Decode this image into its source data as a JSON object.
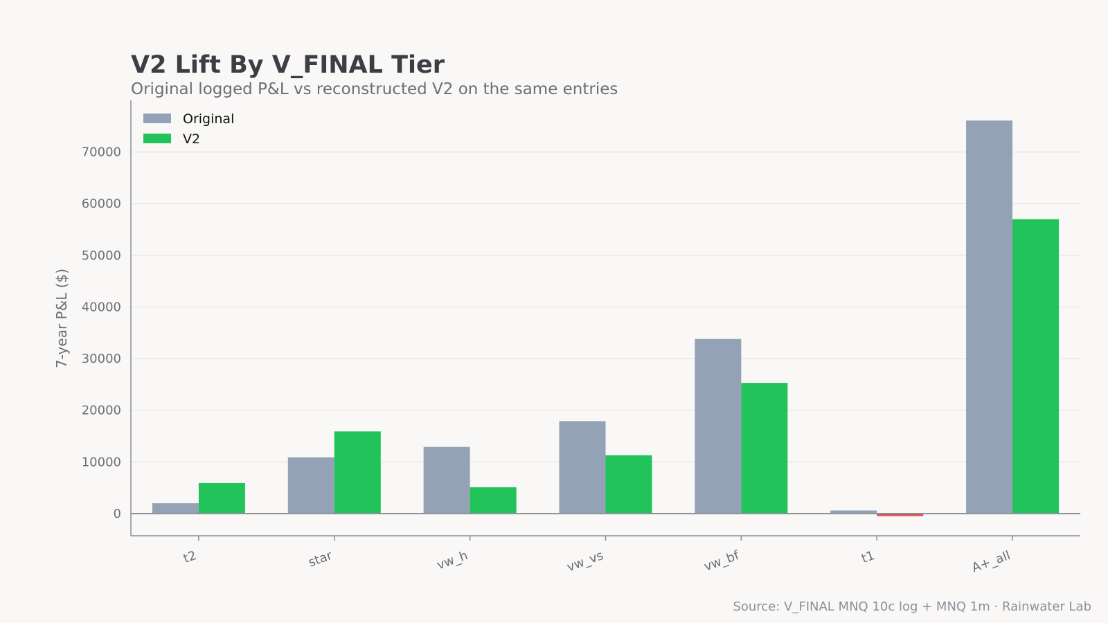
{
  "chart_data": {
    "type": "bar",
    "title": "V2 Lift By V_FINAL Tier",
    "subtitle": "Original logged P&L vs reconstructed V2 on the same entries",
    "xlabel": "",
    "ylabel": "7-year P&L ($)",
    "ylim": [
      -4300,
      80000
    ],
    "yticks": [
      0,
      10000,
      20000,
      30000,
      40000,
      50000,
      60000,
      70000
    ],
    "grid": "horizontal",
    "legend_position": "top-left",
    "categories": [
      "t2",
      "star",
      "vw_h",
      "vw_vs",
      "vw_bf",
      "t1",
      "A+_all"
    ],
    "series": [
      {
        "name": "Original",
        "color": "#93a3b5",
        "values": [
          2000,
          10900,
          12900,
          17900,
          33800,
          600,
          76100
        ]
      },
      {
        "name": "V2",
        "color": "#22c35a",
        "negative_color": "#d9534f",
        "values": [
          5900,
          15900,
          5100,
          11300,
          25300,
          -500,
          57000
        ]
      }
    ],
    "source": "Source: V_FINAL MNQ 10c log + MNQ 1m · Rainwater Lab"
  }
}
